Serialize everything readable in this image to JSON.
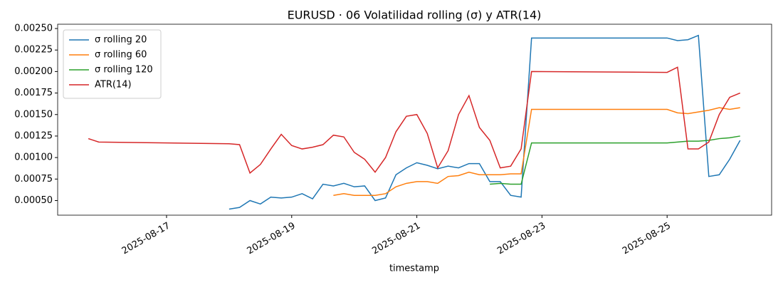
{
  "chart_data": {
    "type": "line",
    "title": "EURUSD · 06 Volatilidad rolling (σ) y ATR(14)",
    "xlabel": "timestamp",
    "x": [
      "2025-08-15T18:00",
      "2025-08-15T22:00",
      "2025-08-18T00:00",
      "2025-08-18T04:00",
      "2025-08-18T08:00",
      "2025-08-18T12:00",
      "2025-08-18T16:00",
      "2025-08-18T20:00",
      "2025-08-19T00:00",
      "2025-08-19T04:00",
      "2025-08-19T08:00",
      "2025-08-19T12:00",
      "2025-08-19T16:00",
      "2025-08-19T20:00",
      "2025-08-20T00:00",
      "2025-08-20T04:00",
      "2025-08-20T08:00",
      "2025-08-20T12:00",
      "2025-08-20T16:00",
      "2025-08-20T20:00",
      "2025-08-21T00:00",
      "2025-08-21T04:00",
      "2025-08-21T08:00",
      "2025-08-21T12:00",
      "2025-08-21T16:00",
      "2025-08-21T20:00",
      "2025-08-22T00:00",
      "2025-08-22T04:00",
      "2025-08-22T08:00",
      "2025-08-22T12:00",
      "2025-08-22T16:00",
      "2025-08-22T20:00",
      "2025-08-25T00:00",
      "2025-08-25T04:00",
      "2025-08-25T08:00",
      "2025-08-25T12:00",
      "2025-08-25T16:00",
      "2025-08-25T20:00",
      "2025-08-26T00:00",
      "2025-08-26T04:00"
    ],
    "series": [
      {
        "name": "σ rolling 20",
        "color": "#1f77b4",
        "values": [
          null,
          null,
          0.0004,
          0.00042,
          0.0005,
          0.00046,
          0.00054,
          0.00053,
          0.00054,
          0.00058,
          0.00052,
          0.00069,
          0.00067,
          0.0007,
          0.00066,
          0.00067,
          0.0005,
          0.00053,
          0.0008,
          0.00088,
          0.00094,
          0.00091,
          0.00087,
          0.0009,
          0.00088,
          0.00093,
          0.00093,
          0.00072,
          0.00072,
          0.00056,
          0.00054,
          0.00239,
          0.00239,
          0.00236,
          0.00237,
          0.00242,
          0.00078,
          0.0008,
          0.00098,
          0.0012
        ]
      },
      {
        "name": "σ rolling 60",
        "color": "#ff7f0e",
        "values": [
          null,
          null,
          null,
          null,
          null,
          null,
          null,
          null,
          null,
          null,
          null,
          null,
          0.00056,
          0.00058,
          0.00056,
          0.00056,
          0.00056,
          0.00058,
          0.00066,
          0.0007,
          0.00072,
          0.00072,
          0.0007,
          0.00078,
          0.00079,
          0.00083,
          0.0008,
          0.0008,
          0.0008,
          0.00081,
          0.00081,
          0.00156,
          0.00156,
          0.00152,
          0.00151,
          0.00153,
          0.00155,
          0.00158,
          0.00156,
          0.00158
        ]
      },
      {
        "name": "σ rolling 120",
        "color": "#2ca02c",
        "values": [
          null,
          null,
          null,
          null,
          null,
          null,
          null,
          null,
          null,
          null,
          null,
          null,
          null,
          null,
          null,
          null,
          null,
          null,
          null,
          null,
          null,
          null,
          null,
          null,
          null,
          null,
          null,
          0.00069,
          0.0007,
          0.00069,
          0.00069,
          0.00117,
          0.00117,
          0.00118,
          0.00119,
          0.00119,
          0.0012,
          0.00122,
          0.00123,
          0.00125
        ]
      },
      {
        "name": "ATR(14)",
        "color": "#d62728",
        "values": [
          0.00122,
          0.00118,
          0.00116,
          0.00115,
          0.00082,
          0.00092,
          0.0011,
          0.00127,
          0.00114,
          0.0011,
          0.00112,
          0.00115,
          0.00126,
          0.00124,
          0.00106,
          0.00098,
          0.00083,
          0.001,
          0.0013,
          0.00148,
          0.0015,
          0.00128,
          0.00088,
          0.00108,
          0.0015,
          0.00172,
          0.00135,
          0.0012,
          0.00088,
          0.0009,
          0.0011,
          0.002,
          0.00199,
          0.00205,
          0.0011,
          0.0011,
          0.00118,
          0.0015,
          0.0017,
          0.00175
        ]
      }
    ],
    "xlim": [
      "2025-08-15T06:14",
      "2025-08-26T16:05"
    ],
    "xticks": [
      "2025-08-17",
      "2025-08-19",
      "2025-08-21",
      "2025-08-23",
      "2025-08-25"
    ],
    "ylim": [
      0.00033,
      0.00255
    ],
    "yticks": [
      {
        "value": 0.0005,
        "label": "0.00050"
      },
      {
        "value": 0.00075,
        "label": "0.00075"
      },
      {
        "value": 0.001,
        "label": "0.00100"
      },
      {
        "value": 0.00125,
        "label": "0.00125"
      },
      {
        "value": 0.0015,
        "label": "0.00150"
      },
      {
        "value": 0.00175,
        "label": "0.00175"
      },
      {
        "value": 0.002,
        "label": "0.00200"
      },
      {
        "value": 0.00225,
        "label": "0.00225"
      },
      {
        "value": 0.0025,
        "label": "0.00250"
      }
    ],
    "grid": false,
    "legend": "upper left"
  }
}
